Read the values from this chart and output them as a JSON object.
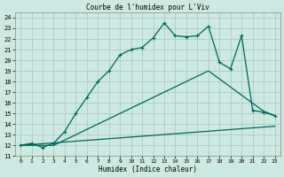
{
  "title": "Courbe de l'humidex pour L'Viv",
  "xlabel": "Humidex (Indice chaleur)",
  "bg_color": "#cce8e0",
  "grid_color": "#aacccc",
  "line_color": "#006655",
  "xlim": [
    -0.5,
    23.5
  ],
  "ylim": [
    11,
    24.5
  ],
  "xticks": [
    0,
    1,
    2,
    3,
    4,
    5,
    6,
    7,
    8,
    9,
    10,
    11,
    12,
    13,
    14,
    15,
    16,
    17,
    18,
    19,
    20,
    21,
    22,
    23
  ],
  "yticks": [
    11,
    12,
    13,
    14,
    15,
    16,
    17,
    18,
    19,
    20,
    21,
    22,
    23,
    24
  ],
  "line1_x": [
    0,
    1,
    2,
    3,
    4,
    5,
    6,
    7,
    8,
    9,
    10,
    11,
    12,
    13,
    14,
    15,
    16,
    17,
    18,
    19,
    20,
    21,
    22,
    23
  ],
  "line1_y": [
    12.0,
    12.2,
    11.8,
    12.2,
    13.3,
    15.0,
    16.5,
    18.0,
    19.0,
    20.5,
    21.0,
    21.2,
    22.1,
    23.5,
    22.3,
    22.2,
    22.3,
    23.2,
    19.8,
    19.2,
    22.3,
    15.3,
    15.1,
    14.8
  ],
  "line2_x": [
    0,
    3,
    17,
    22,
    23
  ],
  "line2_y": [
    12.0,
    12.0,
    19.0,
    15.2,
    14.8
  ],
  "line3_x": [
    0,
    23
  ],
  "line3_y": [
    12.0,
    13.8
  ]
}
